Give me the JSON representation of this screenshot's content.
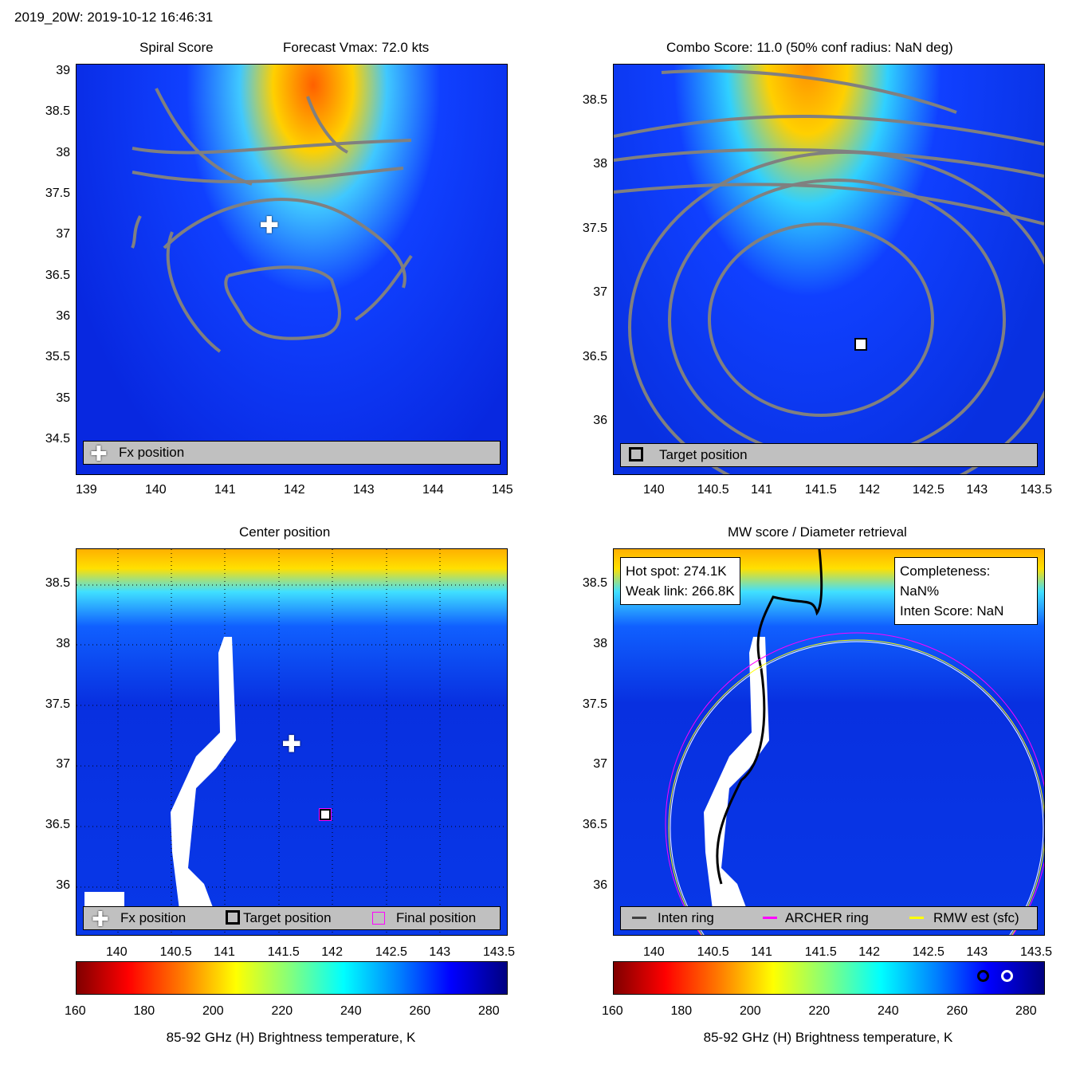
{
  "header": "2019_20W: 2019-10-12 16:46:31",
  "panels": {
    "spiral": {
      "title_left": "Spiral Score",
      "title_right": "Forecast Vmax: 72.0 kts",
      "legend": "Fx position",
      "xticks": [
        "139",
        "140",
        "141",
        "142",
        "143",
        "144",
        "145"
      ],
      "yticks": [
        "39",
        "38.5",
        "38",
        "37.5",
        "37",
        "36.5",
        "36",
        "35.5",
        "35",
        "34.5"
      ]
    },
    "combo": {
      "title": "Combo Score: 11.0  (50% conf radius: NaN deg)",
      "legend": "Target position",
      "xticks": [
        "140",
        "140.5",
        "141",
        "141.5",
        "142",
        "142.5",
        "143",
        "143.5"
      ],
      "yticks": [
        "38.5",
        "38",
        "37.5",
        "37",
        "36.5",
        "36"
      ]
    },
    "center": {
      "title": "Center position",
      "legend_fx": "Fx position",
      "legend_target": "Target position",
      "legend_final": "Final position",
      "xticks": [
        "140",
        "140.5",
        "141",
        "141.5",
        "142",
        "142.5",
        "143",
        "143.5"
      ],
      "yticks": [
        "38.5",
        "38",
        "37.5",
        "37",
        "36.5",
        "36"
      ]
    },
    "mw": {
      "title": "MW score / Diameter retrieval",
      "hot_spot": "Hot spot: 274.1K",
      "weak_link": "Weak link: 266.8K",
      "completeness": "Completeness: NaN%",
      "inten_score": "Inten Score: NaN",
      "legend_inten": "Inten ring",
      "legend_archer": "ARCHER ring",
      "legend_rmw": "RMW est (sfc)",
      "xticks": [
        "140",
        "140.5",
        "141",
        "141.5",
        "142",
        "142.5",
        "143",
        "143.5"
      ],
      "yticks": [
        "38.5",
        "38",
        "37.5",
        "37",
        "36.5",
        "36"
      ]
    }
  },
  "colorbar": {
    "ticks": [
      "160",
      "180",
      "200",
      "220",
      "240",
      "260",
      "280"
    ],
    "label": "85-92 GHz (H) Brightness temperature, K",
    "colors": [
      "#800000",
      "#ff0000",
      "#ff8000",
      "#ffff00",
      "#80ff80",
      "#00ffff",
      "#0080ff",
      "#0000ff",
      "#000080"
    ]
  },
  "chart_data": [
    {
      "type": "heatmap",
      "title": "Spiral Score",
      "xlim": [
        138.9,
        145
      ],
      "ylim": [
        34.1,
        39.1
      ],
      "markers": [
        {
          "name": "Fx position",
          "x": 141.6,
          "y": 37.2
        }
      ]
    },
    {
      "type": "heatmap",
      "title": "Combo Score: 11.0  (50% conf radius: NaN deg)",
      "xlim": [
        139.6,
        143.6
      ],
      "ylim": [
        35.6,
        38.8
      ],
      "markers": [
        {
          "name": "Target position",
          "x": 141.9,
          "y": 36.6
        }
      ]
    },
    {
      "type": "heatmap",
      "title": "Center position",
      "xlim": [
        139.6,
        143.6
      ],
      "ylim": [
        35.6,
        38.8
      ],
      "markers": [
        {
          "name": "Fx position",
          "x": 141.6,
          "y": 37.2
        },
        {
          "name": "Target position",
          "x": 141.9,
          "y": 36.6
        }
      ]
    },
    {
      "type": "heatmap",
      "title": "MW score / Diameter retrieval",
      "xlim": [
        139.6,
        143.6
      ],
      "ylim": [
        35.6,
        38.8
      ],
      "annotations": [
        "Hot spot: 274.1K",
        "Weak link: 266.8K",
        "Completeness: NaN%",
        "Inten Score: NaN"
      ]
    }
  ]
}
